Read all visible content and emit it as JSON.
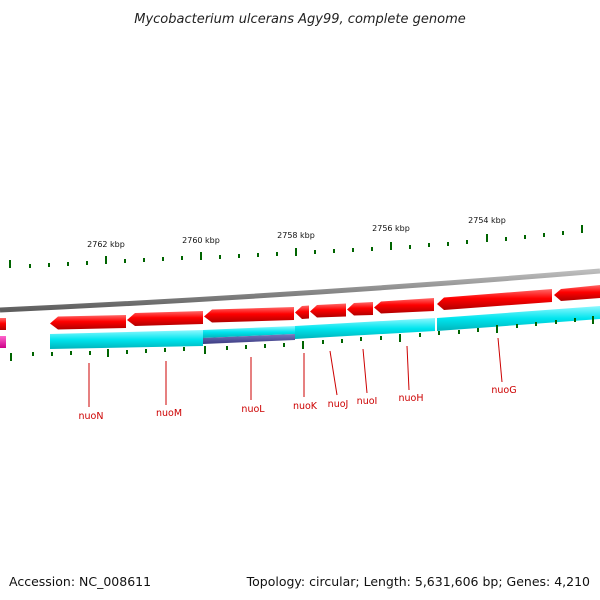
{
  "title": "Mycobacterium ulcerans Agy99, complete genome",
  "footer": {
    "accession": "Accession: NC_008611",
    "stats": "Topology: circular; Length: 5,631,606 bp; Genes: 4,210"
  },
  "ruler_labels": [
    "2762 kbp",
    "2760 kbp",
    "2758 kbp",
    "2756 kbp",
    "2754 kbp"
  ],
  "gene_labels": [
    "nuoN",
    "nuoM",
    "nuoL",
    "nuoK",
    "nuoJ",
    "nuoI",
    "nuoH",
    "nuoG"
  ],
  "colors": {
    "backbone": "#8a8a8a",
    "cds_forward": "#ff0000",
    "cds_reverse_track": "#00e5ee",
    "highlight": "#5a5aa0",
    "magenta": "#ff00aa",
    "ticks": "#006400",
    "gene_label": "#cc0000"
  }
}
